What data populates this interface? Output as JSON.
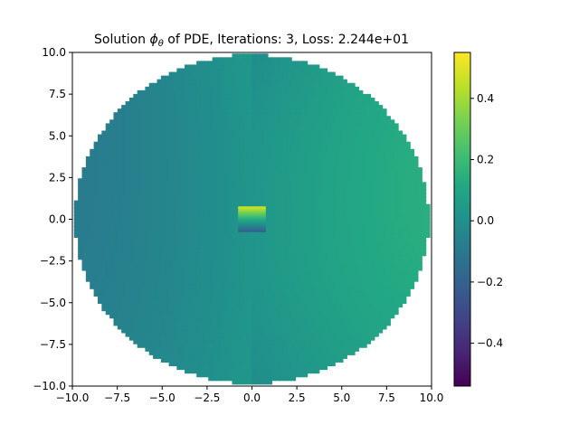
{
  "chart_data": {
    "type": "heatmap",
    "title_prefix": "Solution ",
    "title_symbol": "ϕ",
    "title_subscript": "θ",
    "title_suffix": " of PDE, Iterations: 3, Loss: 2.244e+01",
    "xlabel": "",
    "ylabel": "",
    "xlim": [
      -10,
      10
    ],
    "ylim": [
      -10,
      10
    ],
    "x_ticks": [
      -10,
      -7.5,
      -5,
      -2.5,
      0,
      2.5,
      5,
      7.5,
      10
    ],
    "y_ticks": [
      -10,
      -7.5,
      -5,
      -2.5,
      0,
      2.5,
      5,
      7.5,
      10
    ],
    "x_tick_labels": [
      "−10.0",
      "−7.5",
      "−5.0",
      "−2.5",
      "0.0",
      "2.5",
      "5.0",
      "7.5",
      "10.0"
    ],
    "y_tick_labels": [
      "−10.0",
      "−7.5",
      "−5.0",
      "−2.5",
      "0.0",
      "2.5",
      "5.0",
      "7.5",
      "10.0"
    ],
    "domain": {
      "shape": "disk",
      "center": [
        0,
        0
      ],
      "radius": 10
    },
    "inner_blob": {
      "x_range": [
        -0.7,
        0.7
      ],
      "y_range": [
        -0.7,
        0.7
      ],
      "value_top": 0.45,
      "value_bottom": -0.2
    },
    "field_model": {
      "description": "phi(x,y) ≈ 0.1*x/10 - 0.05*(y/10)^2 + 0.02",
      "left_value": -0.12,
      "right_value": 0.17
    },
    "grid": false,
    "colormap": "viridis",
    "colorbar": {
      "vmin": -0.54,
      "vmax": 0.55,
      "ticks": [
        -0.4,
        -0.2,
        0.0,
        0.2,
        0.4
      ],
      "tick_labels": [
        "−0.4",
        "−0.2",
        "0.0",
        "0.2",
        "0.4"
      ]
    }
  }
}
